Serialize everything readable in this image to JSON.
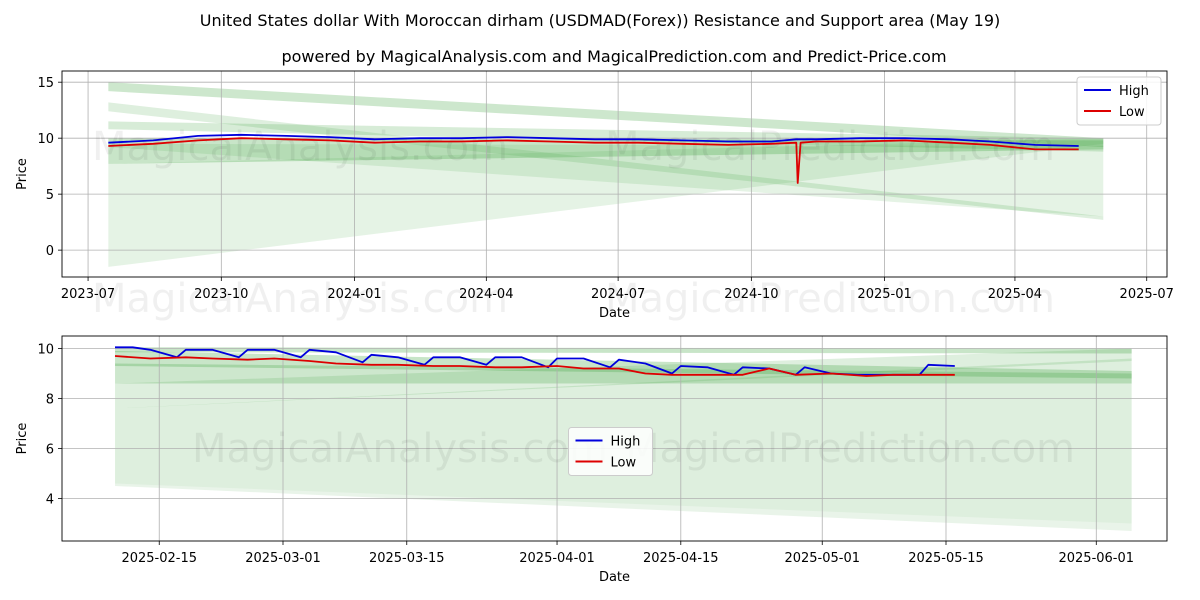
{
  "title": "United States dollar With Moroccan dirham (USDMAD(Forex)) Resistance and Support area (May 19)",
  "subtitle": "powered by MagicalAnalysis.com and MagicalPrediction.com and Predict-Price.com",
  "watermark": [
    "MagicalAnalysis.com",
    "MagicalPrediction.com"
  ],
  "colors": {
    "high": "#0000dd",
    "low": "#dd0000",
    "band": "#4aa84a",
    "grid": "#b0b0b0"
  },
  "chart_data": [
    {
      "type": "line",
      "panel": "top",
      "xlabel": "Date",
      "ylabel": "Price",
      "x_range": [
        "2023-06-13",
        "2025-07-15"
      ],
      "ylim": [
        -2.4,
        16.0
      ],
      "x_ticks": [
        {
          "date": "2023-07-01",
          "label": "2023-07"
        },
        {
          "date": "2023-10-01",
          "label": "2023-10"
        },
        {
          "date": "2024-01-01",
          "label": "2024-01"
        },
        {
          "date": "2024-04-01",
          "label": "2024-04"
        },
        {
          "date": "2024-07-01",
          "label": "2024-07"
        },
        {
          "date": "2024-10-01",
          "label": "2024-10"
        },
        {
          "date": "2025-01-01",
          "label": "2025-01"
        },
        {
          "date": "2025-04-01",
          "label": "2025-04"
        },
        {
          "date": "2025-07-01",
          "label": "2025-07"
        }
      ],
      "y_ticks": [
        0,
        5,
        10,
        15
      ],
      "legend": {
        "position": "top-right",
        "entries": [
          "High",
          "Low"
        ]
      },
      "bands": [
        {
          "x0": "2023-07-15",
          "x1": "2025-06-01",
          "y0_top": 15.0,
          "y0_bot": 14.2,
          "y1_top": 10.0,
          "y1_bot": 9.2,
          "opacity": 0.28
        },
        {
          "x0": "2023-07-15",
          "x1": "2025-06-01",
          "y0_top": 13.2,
          "y0_bot": 12.4,
          "y1_top": 3.0,
          "y1_bot": 2.7,
          "opacity": 0.18
        },
        {
          "x0": "2023-07-15",
          "x1": "2025-06-01",
          "y0_top": 11.5,
          "y0_bot": 10.8,
          "y1_top": 10.0,
          "y1_bot": 8.8,
          "opacity": 0.22
        },
        {
          "x0": "2023-07-15",
          "x1": "2025-06-01",
          "y0_top": 10.0,
          "y0_bot": 7.7,
          "y1_top": 9.8,
          "y1_bot": 9.0,
          "opacity": 0.3
        },
        {
          "x0": "2023-07-15",
          "x1": "2025-06-01",
          "y0_top": 7.7,
          "y0_bot": -1.5,
          "y1_top": 10.0,
          "y1_bot": 9.5,
          "opacity": 0.14
        },
        {
          "x0": "2023-07-15",
          "x1": "2025-06-01",
          "y0_top": 9.5,
          "y0_bot": 9.2,
          "y1_top": 9.3,
          "y1_bot": 3.0,
          "opacity": 0.14
        }
      ],
      "series": [
        {
          "name": "High",
          "color": "#0000dd",
          "x": [
            "2023-07-15",
            "2023-08-15",
            "2023-09-15",
            "2023-10-15",
            "2023-11-15",
            "2023-12-15",
            "2024-01-15",
            "2024-02-15",
            "2024-03-15",
            "2024-04-15",
            "2024-05-15",
            "2024-06-15",
            "2024-07-15",
            "2024-08-15",
            "2024-09-15",
            "2024-10-15",
            "2024-11-01",
            "2024-11-15",
            "2024-12-15",
            "2025-01-15",
            "2025-02-15",
            "2025-03-15",
            "2025-04-15",
            "2025-05-15"
          ],
          "values": [
            9.6,
            9.8,
            10.2,
            10.3,
            10.2,
            10.1,
            9.9,
            10.0,
            10.0,
            10.1,
            10.0,
            9.9,
            9.9,
            9.8,
            9.7,
            9.7,
            9.9,
            9.9,
            10.0,
            10.0,
            9.9,
            9.7,
            9.4,
            9.3
          ]
        },
        {
          "name": "Low",
          "color": "#dd0000",
          "x": [
            "2023-07-15",
            "2023-08-15",
            "2023-09-15",
            "2023-10-15",
            "2023-11-15",
            "2023-12-15",
            "2024-01-15",
            "2024-02-15",
            "2024-03-15",
            "2024-04-15",
            "2024-05-15",
            "2024-06-15",
            "2024-07-15",
            "2024-08-15",
            "2024-09-15",
            "2024-10-15",
            "2024-11-01",
            "2024-11-02",
            "2024-11-04",
            "2024-11-15",
            "2024-12-15",
            "2025-01-15",
            "2025-02-15",
            "2025-03-15",
            "2025-04-15",
            "2025-05-15"
          ],
          "values": [
            9.3,
            9.5,
            9.8,
            10.0,
            9.9,
            9.8,
            9.6,
            9.7,
            9.7,
            9.8,
            9.7,
            9.6,
            9.6,
            9.5,
            9.4,
            9.5,
            9.6,
            6.0,
            9.6,
            9.7,
            9.7,
            9.8,
            9.6,
            9.4,
            9.0,
            9.0
          ]
        }
      ]
    },
    {
      "type": "line",
      "panel": "bottom",
      "xlabel": "Date",
      "ylabel": "Price",
      "x_range": [
        "2025-02-04",
        "2025-06-09"
      ],
      "ylim": [
        2.3,
        10.5
      ],
      "x_ticks": [
        {
          "date": "2025-02-15",
          "label": "2025-02-15"
        },
        {
          "date": "2025-03-01",
          "label": "2025-03-01"
        },
        {
          "date": "2025-03-15",
          "label": "2025-03-15"
        },
        {
          "date": "2025-04-01",
          "label": "2025-04-01"
        },
        {
          "date": "2025-04-15",
          "label": "2025-04-15"
        },
        {
          "date": "2025-05-01",
          "label": "2025-05-01"
        },
        {
          "date": "2025-05-15",
          "label": "2025-05-15"
        },
        {
          "date": "2025-06-01",
          "label": "2025-06-01"
        }
      ],
      "y_ticks": [
        4,
        6,
        8,
        10
      ],
      "legend": {
        "position": "center",
        "entries": [
          "High",
          "Low"
        ]
      },
      "bands": [
        {
          "x0": "2025-02-10",
          "x1": "2025-06-05",
          "y0_top": 10.05,
          "y0_bot": 9.85,
          "y1_top": 10.0,
          "y1_bot": 9.8,
          "opacity": 0.3
        },
        {
          "x0": "2025-02-10",
          "x1": "2025-06-05",
          "y0_top": 9.9,
          "y0_bot": 9.3,
          "y1_top": 9.1,
          "y1_bot": 8.8,
          "opacity": 0.3
        },
        {
          "x0": "2025-02-10",
          "x1": "2025-06-05",
          "y0_top": 9.4,
          "y0_bot": 8.6,
          "y1_top": 9.0,
          "y1_bot": 8.6,
          "opacity": 0.28
        },
        {
          "x0": "2025-02-10",
          "x1": "2025-06-05",
          "y0_top": 8.6,
          "y0_bot": 7.6,
          "y1_top": 10.0,
          "y1_bot": 9.5,
          "opacity": 0.18
        },
        {
          "x0": "2025-02-10",
          "x1": "2025-06-05",
          "y0_top": 7.6,
          "y0_bot": 4.6,
          "y1_top": 9.6,
          "y1_bot": 3.0,
          "opacity": 0.18
        },
        {
          "x0": "2025-02-10",
          "x1": "2025-06-05",
          "y0_top": 4.6,
          "y0_bot": 4.5,
          "y1_top": 3.0,
          "y1_bot": 2.7,
          "opacity": 0.12
        }
      ],
      "series": [
        {
          "name": "High",
          "color": "#0000dd",
          "x": [
            "2025-02-10",
            "2025-02-12",
            "2025-02-14",
            "2025-02-17",
            "2025-02-18",
            "2025-02-21",
            "2025-02-24",
            "2025-02-25",
            "2025-02-28",
            "2025-03-03",
            "2025-03-04",
            "2025-03-07",
            "2025-03-10",
            "2025-03-11",
            "2025-03-14",
            "2025-03-17",
            "2025-03-18",
            "2025-03-21",
            "2025-03-24",
            "2025-03-25",
            "2025-03-28",
            "2025-03-31",
            "2025-04-01",
            "2025-04-04",
            "2025-04-07",
            "2025-04-08",
            "2025-04-11",
            "2025-04-14",
            "2025-04-15",
            "2025-04-18",
            "2025-04-21",
            "2025-04-22",
            "2025-04-25",
            "2025-04-28",
            "2025-04-29",
            "2025-05-02",
            "2025-05-05",
            "2025-05-06",
            "2025-05-09",
            "2025-05-12",
            "2025-05-13",
            "2025-05-16"
          ],
          "values": [
            10.05,
            10.05,
            9.95,
            9.65,
            9.95,
            9.95,
            9.65,
            9.95,
            9.95,
            9.65,
            9.95,
            9.85,
            9.45,
            9.75,
            9.65,
            9.35,
            9.65,
            9.65,
            9.35,
            9.65,
            9.65,
            9.25,
            9.6,
            9.6,
            9.25,
            9.55,
            9.4,
            9.0,
            9.3,
            9.25,
            8.95,
            9.25,
            9.2,
            8.95,
            9.25,
            9.0,
            8.95,
            8.95,
            8.95,
            8.95,
            9.35,
            9.3
          ]
        },
        {
          "name": "Low",
          "color": "#dd0000",
          "x": [
            "2025-02-10",
            "2025-02-14",
            "2025-02-18",
            "2025-02-21",
            "2025-02-25",
            "2025-02-28",
            "2025-03-04",
            "2025-03-07",
            "2025-03-11",
            "2025-03-14",
            "2025-03-18",
            "2025-03-21",
            "2025-03-25",
            "2025-03-28",
            "2025-04-01",
            "2025-04-04",
            "2025-04-08",
            "2025-04-11",
            "2025-04-14",
            "2025-04-18",
            "2025-04-22",
            "2025-04-25",
            "2025-04-28",
            "2025-05-02",
            "2025-05-06",
            "2025-05-09",
            "2025-05-13",
            "2025-05-16"
          ],
          "values": [
            9.7,
            9.6,
            9.65,
            9.6,
            9.55,
            9.6,
            9.5,
            9.4,
            9.35,
            9.35,
            9.3,
            9.3,
            9.25,
            9.25,
            9.3,
            9.2,
            9.2,
            9.0,
            8.95,
            8.95,
            8.95,
            9.2,
            8.95,
            9.0,
            8.9,
            8.95,
            8.95,
            8.95
          ]
        }
      ]
    }
  ]
}
